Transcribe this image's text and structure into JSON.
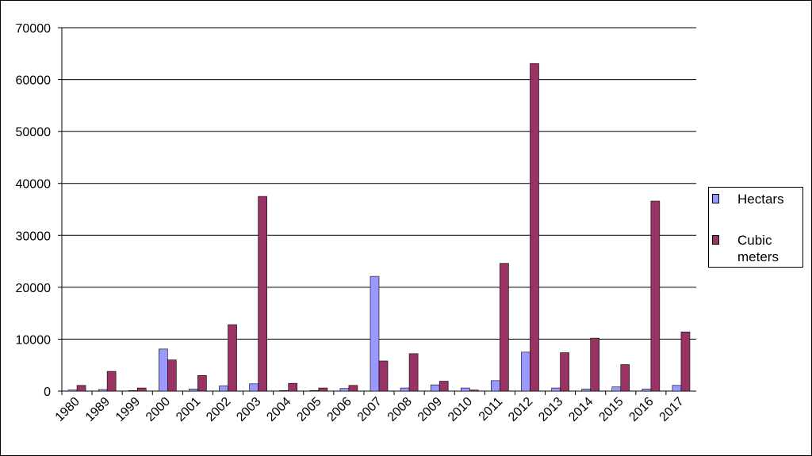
{
  "chart_data": {
    "type": "bar",
    "categories": [
      "1980",
      "1989",
      "1999",
      "2000",
      "2001",
      "2002",
      "2003",
      "2004",
      "2005",
      "2006",
      "2007",
      "2008",
      "2009",
      "2010",
      "2011",
      "2012",
      "2013",
      "2014",
      "2015",
      "2016",
      "2017"
    ],
    "series": [
      {
        "name": "Hectars",
        "color": "#9999ff",
        "values": [
          200,
          300,
          100,
          8100,
          400,
          1000,
          1400,
          100,
          100,
          500,
          22100,
          600,
          1200,
          600,
          2000,
          7500,
          600,
          400,
          800,
          400,
          1100
        ]
      },
      {
        "name": "Cubic meters",
        "color": "#993366",
        "values": [
          1100,
          3800,
          600,
          6000,
          3000,
          12800,
          37500,
          1500,
          600,
          1100,
          5800,
          7200,
          1900,
          200,
          24600,
          63100,
          7400,
          10200,
          5100,
          36600,
          11400
        ]
      }
    ],
    "ylim": [
      0,
      70000
    ],
    "yticks": [
      0,
      10000,
      20000,
      30000,
      40000,
      50000,
      60000,
      70000
    ],
    "grid": true,
    "legend": "right"
  }
}
